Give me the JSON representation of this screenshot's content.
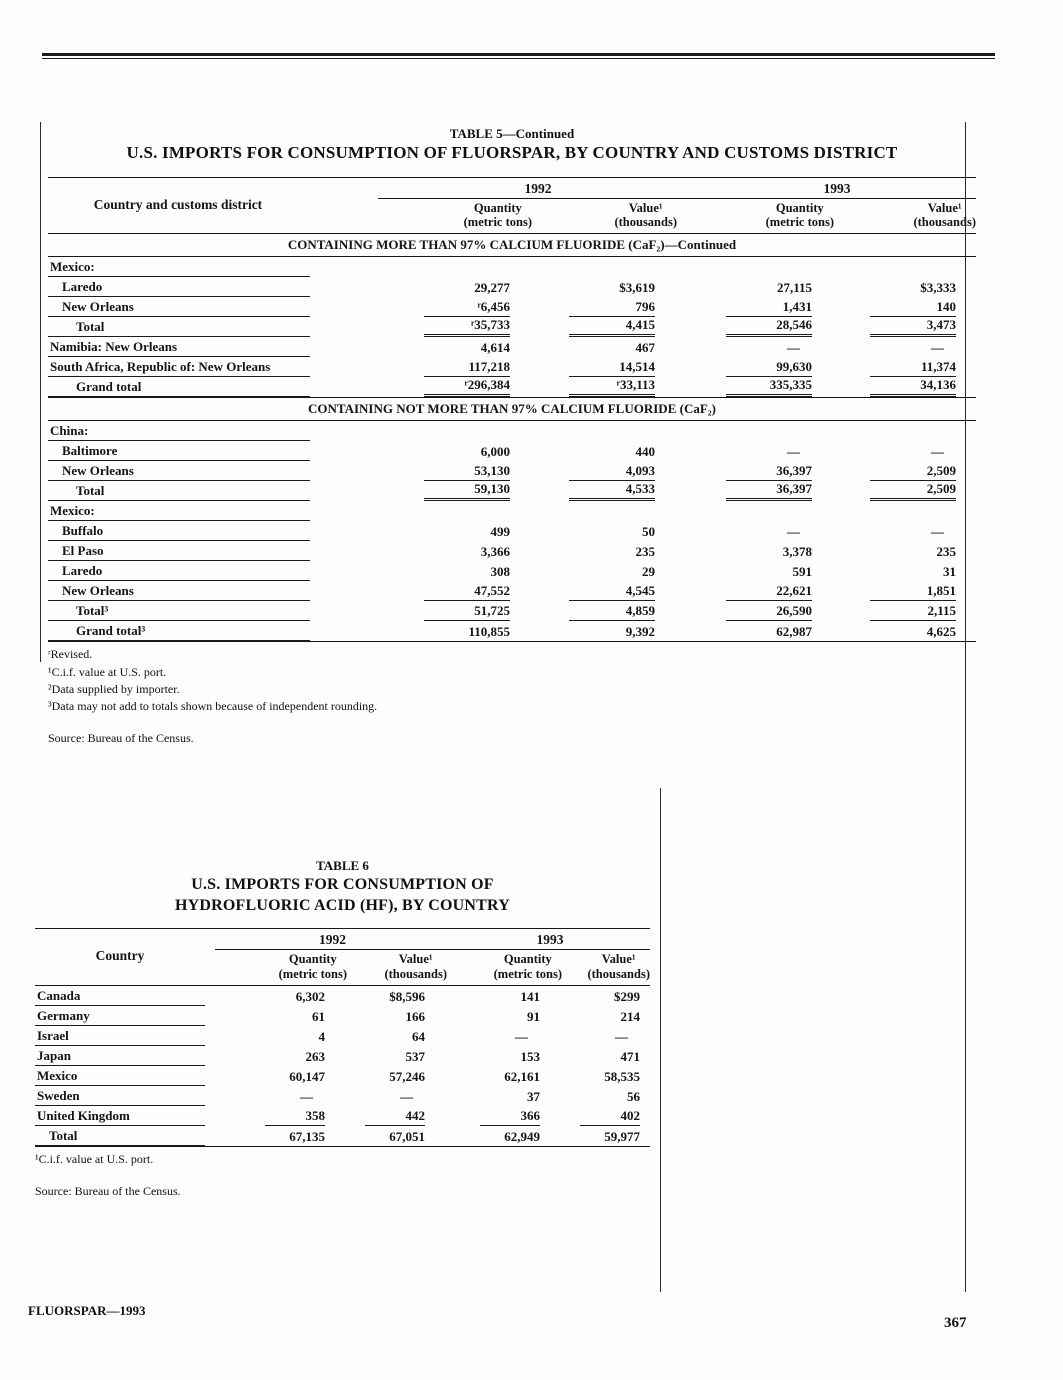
{
  "page": {
    "footer_left": "FLUORSPAR—1993",
    "page_number": "367"
  },
  "table5": {
    "title_line1": "TABLE 5—Continued",
    "title_line2": "U.S. IMPORTS FOR CONSUMPTION OF FLUORSPAR, BY COUNTRY AND CUSTOMS DISTRICT",
    "stub_header": "Country and customs district",
    "year_headers": [
      "1992",
      "1993"
    ],
    "sub_headers": [
      {
        "line1": "Quantity",
        "line2": "(metric tons)"
      },
      {
        "line1": "Value¹",
        "line2": "(thousands)"
      },
      {
        "line1": "Quantity",
        "line2": "(metric tons)"
      },
      {
        "line1": "Value¹",
        "line2": "(thousands)"
      }
    ],
    "sections": [
      {
        "heading": "CONTAINING MORE THAN 97% CALCIUM FLUORIDE (CaF₂)—Continued",
        "rows": [
          {
            "label": "Mexico:",
            "indent": 0,
            "values": [
              "",
              "",
              "",
              ""
            ]
          },
          {
            "label": "Laredo",
            "indent": 1,
            "values": [
              "29,277",
              "$3,619",
              "27,115",
              "$3,333"
            ]
          },
          {
            "label": "New Orleans",
            "indent": 1,
            "rule": "single",
            "values": [
              "ʳ6,456",
              "796",
              "1,431",
              "140"
            ]
          },
          {
            "label": "Total",
            "indent": 2,
            "rule": "double",
            "values": [
              "ʳ35,733",
              "4,415",
              "28,546",
              "3,473"
            ]
          },
          {
            "label": "Namibia: New Orleans",
            "indent": 0,
            "values": [
              "4,614",
              "467",
              "—",
              "—"
            ]
          },
          {
            "label": "South Africa, Republic of: New Orleans",
            "indent": 0,
            "rule": "single",
            "values": [
              "117,218",
              "14,514",
              "99,630",
              "11,374"
            ]
          },
          {
            "label": "Grand total",
            "indent": 2,
            "rule": "double",
            "values": [
              "ʳ296,384",
              "ʳ33,113",
              "335,335",
              "34,136"
            ]
          }
        ]
      },
      {
        "heading": "CONTAINING NOT MORE THAN 97% CALCIUM FLUORIDE (CaF₂)",
        "rows": [
          {
            "label": "China:",
            "indent": 0,
            "values": [
              "",
              "",
              "",
              ""
            ]
          },
          {
            "label": "Baltimore",
            "indent": 1,
            "values": [
              "6,000",
              "440",
              "—",
              "—"
            ]
          },
          {
            "label": "New Orleans",
            "indent": 1,
            "rule": "single",
            "values": [
              "53,130",
              "4,093",
              "36,397",
              "2,509"
            ]
          },
          {
            "label": "Total",
            "indent": 2,
            "rule": "double",
            "values": [
              "59,130",
              "4,533",
              "36,397",
              "2,509"
            ]
          },
          {
            "label": "Mexico:",
            "indent": 0,
            "values": [
              "",
              "",
              "",
              ""
            ]
          },
          {
            "label": "Buffalo",
            "indent": 1,
            "values": [
              "499",
              "50",
              "—",
              "—"
            ]
          },
          {
            "label": "El Paso",
            "indent": 1,
            "values": [
              "3,366",
              "235",
              "3,378",
              "235"
            ]
          },
          {
            "label": "Laredo",
            "indent": 1,
            "values": [
              "308",
              "29",
              "591",
              "31"
            ]
          },
          {
            "label": "New Orleans",
            "indent": 1,
            "rule": "single",
            "values": [
              "47,552",
              "4,545",
              "22,621",
              "1,851"
            ]
          },
          {
            "label": "Total³",
            "indent": 2,
            "rule": "single",
            "values": [
              "51,725",
              "4,859",
              "26,590",
              "2,115"
            ]
          },
          {
            "label": "Grand total³",
            "indent": 2,
            "values": [
              "110,855",
              "9,392",
              "62,987",
              "4,625"
            ]
          }
        ]
      }
    ],
    "footnotes": [
      "ʳRevised.",
      "¹C.i.f. value at U.S. port.",
      "²Data supplied by importer.",
      "³Data may not add to totals shown because of independent rounding."
    ],
    "source": "Source: Bureau of the Census."
  },
  "table6": {
    "title_line1": "TABLE 6",
    "title_line2": "U.S. IMPORTS FOR CONSUMPTION OF",
    "title_line3": "HYDROFLUORIC ACID (HF), BY COUNTRY",
    "stub_header": "Country",
    "year_headers": [
      "1992",
      "1993"
    ],
    "sub_headers": [
      {
        "line1": "Quantity",
        "line2": "(metric tons)"
      },
      {
        "line1": "Value¹",
        "line2": "(thousands)"
      },
      {
        "line1": "Quantity",
        "line2": "(metric tons)"
      },
      {
        "line1": "Value¹",
        "line2": "(thousands)"
      }
    ],
    "rows": [
      {
        "label": "Canada",
        "indent": 0,
        "values": [
          "6,302",
          "$8,596",
          "141",
          "$299"
        ]
      },
      {
        "label": "Germany",
        "indent": 0,
        "values": [
          "61",
          "166",
          "91",
          "214"
        ]
      },
      {
        "label": "Israel",
        "indent": 0,
        "values": [
          "4",
          "64",
          "—",
          "—"
        ]
      },
      {
        "label": "Japan",
        "indent": 0,
        "values": [
          "263",
          "537",
          "153",
          "471"
        ]
      },
      {
        "label": "Mexico",
        "indent": 0,
        "values": [
          "60,147",
          "57,246",
          "62,161",
          "58,535"
        ]
      },
      {
        "label": "Sweden",
        "indent": 0,
        "values": [
          "—",
          "—",
          "37",
          "56"
        ]
      },
      {
        "label": "United Kingdom",
        "indent": 0,
        "rule": "single",
        "values": [
          "358",
          "442",
          "366",
          "402"
        ]
      },
      {
        "label": "Total",
        "indent": 1,
        "values": [
          "67,135",
          "67,051",
          "62,949",
          "59,977"
        ]
      }
    ],
    "footnotes": [
      "¹C.i.f. value at U.S. port."
    ],
    "source": "Source: Bureau of the Census."
  }
}
